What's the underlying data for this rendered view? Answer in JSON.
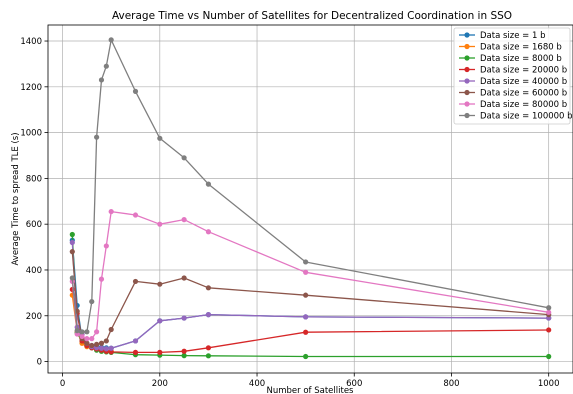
{
  "chart_data": {
    "type": "line",
    "title": "Average Time vs Number of Satellites for Decentralized Coordination in SSO",
    "xlabel": "Number of Satellites",
    "ylabel": "Average Time to spread TLE (s)",
    "xlim": [
      -30,
      1050
    ],
    "ylim": [
      -50,
      1470
    ],
    "xticks": [
      0,
      200,
      400,
      600,
      800,
      1000
    ],
    "yticks": [
      0,
      200,
      400,
      600,
      800,
      1000,
      1200,
      1400
    ],
    "grid": true,
    "legend_position": "upper right",
    "series": [
      {
        "name": "Data size = 1 b",
        "color": "#1f77b4",
        "x": [
          20,
          30,
          40,
          50,
          60,
          70,
          80,
          90,
          100,
          150,
          200,
          250,
          300,
          500,
          1000
        ],
        "y": [
          530,
          245,
          100,
          75,
          70,
          65,
          62,
          60,
          58,
          90,
          178,
          190,
          205,
          195,
          190
        ]
      },
      {
        "name": "Data size = 1680 b",
        "color": "#ff7f0e",
        "x": [
          20,
          30,
          40,
          50,
          60,
          70,
          80,
          90,
          100
        ],
        "y": [
          290,
          130,
          80,
          65,
          60,
          55,
          50,
          48,
          45
        ]
      },
      {
        "name": "Data size = 8000 b",
        "color": "#2ca02c",
        "x": [
          20,
          30,
          40,
          50,
          60,
          70,
          80,
          90,
          100,
          150,
          200,
          250,
          300,
          500,
          1000
        ],
        "y": [
          555,
          125,
          90,
          70,
          60,
          50,
          45,
          42,
          40,
          30,
          28,
          26,
          25,
          22,
          22
        ]
      },
      {
        "name": "Data size = 20000 b",
        "color": "#d62728",
        "x": [
          20,
          30,
          40,
          50,
          60,
          70,
          80,
          90,
          100,
          150,
          200,
          250,
          300,
          500,
          1000
        ],
        "y": [
          315,
          210,
          90,
          70,
          60,
          55,
          50,
          45,
          42,
          40,
          40,
          45,
          60,
          128,
          138
        ]
      },
      {
        "name": "Data size = 40000 b",
        "color": "#9467bd",
        "x": [
          20,
          30,
          40,
          50,
          60,
          70,
          80,
          90,
          100,
          150,
          200,
          250,
          300,
          500,
          1000
        ],
        "y": [
          520,
          150,
          120,
          80,
          65,
          60,
          58,
          56,
          58,
          90,
          178,
          190,
          205,
          195,
          190
        ]
      },
      {
        "name": "Data size = 60000 b",
        "color": "#8c564b",
        "x": [
          20,
          30,
          40,
          50,
          60,
          70,
          80,
          90,
          100,
          150,
          200,
          250,
          300,
          500,
          1000
        ],
        "y": [
          480,
          220,
          100,
          80,
          70,
          75,
          80,
          90,
          140,
          350,
          338,
          365,
          322,
          290,
          205
        ]
      },
      {
        "name": "Data size = 80000 b",
        "color": "#e377c2",
        "x": [
          20,
          30,
          40,
          50,
          60,
          70,
          80,
          90,
          100,
          150,
          200,
          250,
          300,
          500,
          1000
        ],
        "y": [
          350,
          120,
          110,
          100,
          100,
          130,
          360,
          505,
          655,
          640,
          600,
          620,
          567,
          390,
          215
        ]
      },
      {
        "name": "Data size = 100000 b",
        "color": "#7f7f7f",
        "x": [
          20,
          30,
          40,
          50,
          60,
          70,
          80,
          90,
          100,
          150,
          200,
          250,
          300,
          500,
          1000
        ],
        "y": [
          365,
          135,
          130,
          130,
          262,
          980,
          1230,
          1290,
          1405,
          1180,
          975,
          890,
          775,
          435,
          235
        ]
      }
    ]
  }
}
